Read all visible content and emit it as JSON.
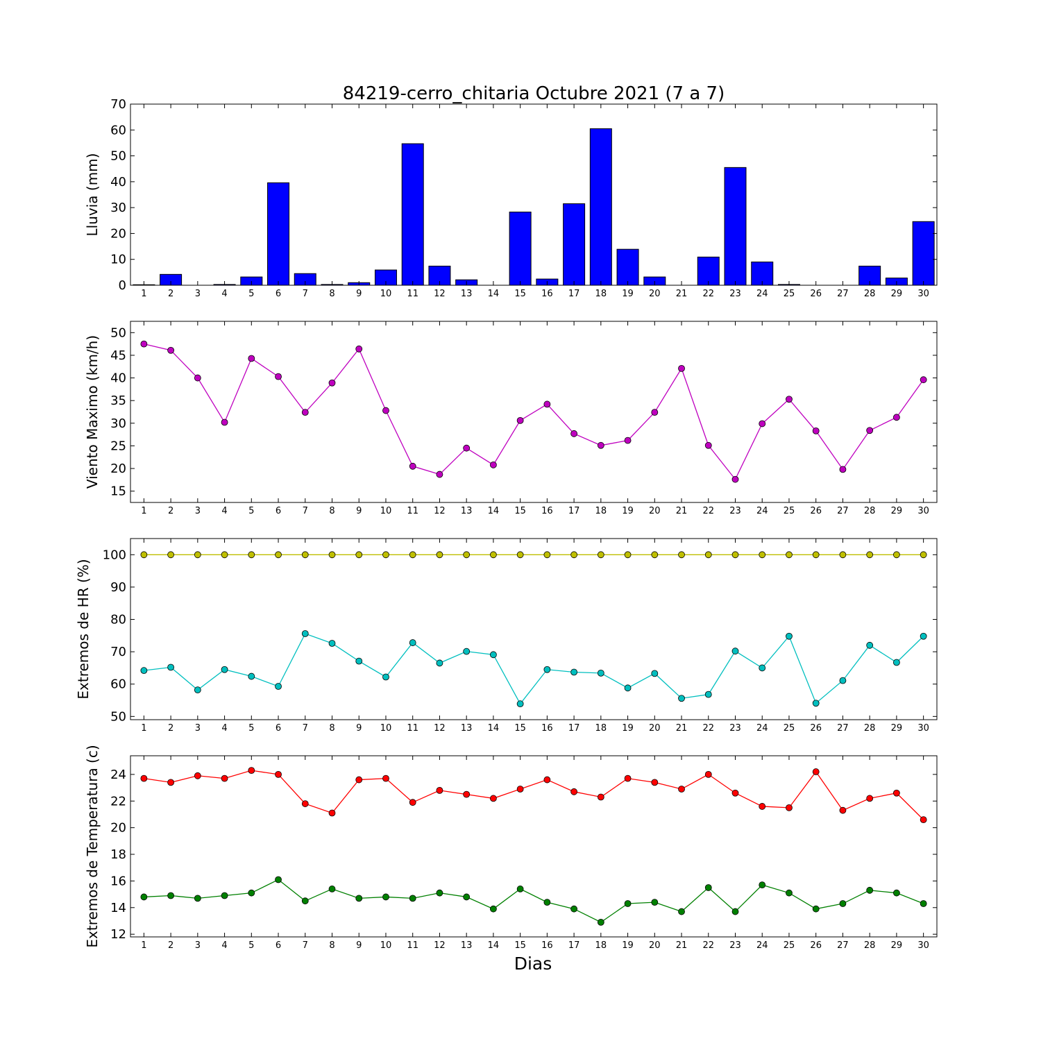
{
  "title": "84219-cerro_chitaria Octubre 2021  (7 a 7)",
  "xlabel": "Dias",
  "colors": {
    "rain": "#0000ff",
    "wind": "#bf00bf",
    "hr_max": "#bfbf00",
    "hr_min": "#00bfbf",
    "t_max": "#ff0000",
    "t_min": "#008000"
  },
  "chart_data": [
    {
      "type": "bar",
      "ylabel": "Lluvia (mm)",
      "ylim": [
        0,
        70
      ],
      "yticks": [
        0,
        10,
        20,
        30,
        40,
        50,
        60,
        70
      ],
      "categories": [
        1,
        2,
        3,
        4,
        5,
        6,
        7,
        8,
        9,
        10,
        11,
        12,
        13,
        14,
        15,
        16,
        17,
        18,
        19,
        20,
        21,
        22,
        23,
        24,
        25,
        26,
        27,
        28,
        29,
        30
      ],
      "series": [
        {
          "values": [
            0.2,
            4.2,
            0,
            0.3,
            3.2,
            39.6,
            4.5,
            0.3,
            1.0,
            5.9,
            54.7,
            7.4,
            2.1,
            0,
            28.3,
            2.4,
            31.5,
            60.5,
            13.9,
            3.2,
            0,
            10.9,
            45.5,
            9.0,
            0.3,
            0,
            0,
            7.4,
            2.8,
            24.6
          ]
        }
      ]
    },
    {
      "type": "line",
      "ylabel": "Viento Maximo (km/h)",
      "ylim": [
        12.5,
        52.5
      ],
      "yticks": [
        15,
        20,
        25,
        30,
        35,
        40,
        45,
        50
      ],
      "x": [
        1,
        2,
        3,
        4,
        5,
        6,
        7,
        8,
        9,
        10,
        11,
        12,
        13,
        14,
        15,
        16,
        17,
        18,
        19,
        20,
        21,
        22,
        23,
        24,
        25,
        26,
        27,
        28,
        29,
        30
      ],
      "series": [
        {
          "values": [
            47.5,
            46.1,
            40.0,
            30.2,
            44.3,
            40.3,
            32.4,
            38.9,
            46.4,
            32.8,
            20.5,
            18.7,
            24.5,
            20.8,
            30.6,
            34.2,
            27.7,
            25.1,
            26.2,
            32.4,
            42.1,
            25.1,
            17.6,
            29.9,
            35.3,
            28.3,
            19.8,
            28.4,
            31.3,
            39.6
          ]
        }
      ]
    },
    {
      "type": "line",
      "ylabel": "Extremos de HR (%)",
      "ylim": [
        49,
        105
      ],
      "yticks": [
        50,
        60,
        70,
        80,
        90,
        100
      ],
      "x": [
        1,
        2,
        3,
        4,
        5,
        6,
        7,
        8,
        9,
        10,
        11,
        12,
        13,
        14,
        15,
        16,
        17,
        18,
        19,
        20,
        21,
        22,
        23,
        24,
        25,
        26,
        27,
        28,
        29,
        30
      ],
      "series": [
        {
          "values": [
            100,
            100,
            100,
            100,
            100,
            100,
            100,
            100,
            100,
            100,
            100,
            100,
            100,
            100,
            100,
            100,
            100,
            100,
            100,
            100,
            100,
            100,
            100,
            100,
            100,
            100,
            100,
            100,
            100,
            100
          ]
        },
        {
          "values": [
            64.2,
            65.2,
            58.2,
            64.5,
            62.4,
            59.3,
            75.6,
            72.6,
            67.1,
            62.2,
            72.8,
            66.5,
            70.1,
            69.1,
            53.9,
            64.5,
            63.7,
            63.4,
            58.8,
            63.3,
            55.6,
            56.8,
            70.2,
            65.0,
            74.8,
            54.1,
            61.1,
            72.0,
            66.7,
            74.8
          ]
        }
      ]
    },
    {
      "type": "line",
      "ylabel": "Extremos de Temperatura (c)",
      "ylim": [
        11.8,
        25.4
      ],
      "yticks": [
        12,
        14,
        16,
        18,
        20,
        22,
        24
      ],
      "x": [
        1,
        2,
        3,
        4,
        5,
        6,
        7,
        8,
        9,
        10,
        11,
        12,
        13,
        14,
        15,
        16,
        17,
        18,
        19,
        20,
        21,
        22,
        23,
        24,
        25,
        26,
        27,
        28,
        29,
        30
      ],
      "series": [
        {
          "values": [
            23.7,
            23.4,
            23.9,
            23.7,
            24.3,
            24.0,
            21.8,
            21.1,
            23.6,
            23.7,
            21.9,
            22.8,
            22.5,
            22.2,
            22.9,
            23.6,
            22.7,
            22.3,
            23.7,
            23.4,
            22.9,
            24.0,
            22.6,
            21.6,
            21.5,
            24.2,
            21.3,
            22.2,
            22.6,
            20.6
          ]
        },
        {
          "values": [
            14.8,
            14.9,
            14.7,
            14.9,
            15.1,
            16.1,
            14.5,
            15.4,
            14.7,
            14.8,
            14.7,
            15.1,
            14.8,
            13.9,
            15.4,
            14.4,
            13.9,
            12.9,
            14.3,
            14.4,
            13.7,
            15.5,
            13.7,
            15.7,
            15.1,
            13.9,
            14.3,
            15.3,
            15.1,
            14.3
          ]
        }
      ]
    }
  ]
}
